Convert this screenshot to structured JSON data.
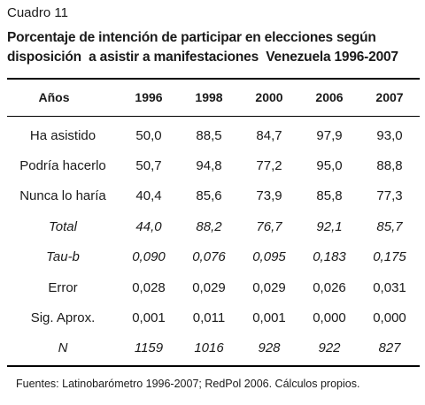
{
  "caption": "Cuadro 11",
  "title_line1": "Porcentaje de intención de participar en elecciones según",
  "title_line2": "disposición  a asistir a manifestaciones  Venezuela 1996-2007",
  "table": {
    "headers": [
      "Años",
      "1996",
      "1998",
      "2000",
      "2006",
      "2007"
    ],
    "rows": [
      {
        "label": "Ha asistido",
        "values": [
          "50,0",
          "88,5",
          "84,7",
          "97,9",
          "93,0"
        ],
        "italic": false
      },
      {
        "label": "Podría hacerlo",
        "values": [
          "50,7",
          "94,8",
          "77,2",
          "95,0",
          "88,8"
        ],
        "italic": false
      },
      {
        "label": "Nunca lo haría",
        "values": [
          "40,4",
          "85,6",
          "73,9",
          "85,8",
          "77,3"
        ],
        "italic": false
      },
      {
        "label": "Total",
        "values": [
          "44,0",
          "88,2",
          "76,7",
          "92,1",
          "85,7"
        ],
        "italic": true
      },
      {
        "label": "Tau-b",
        "values": [
          "0,090",
          "0,076",
          "0,095",
          "0,183",
          "0,175"
        ],
        "italic": true
      },
      {
        "label": "Error",
        "values": [
          "0,028",
          "0,029",
          "0,029",
          "0,026",
          "0,031"
        ],
        "italic": false
      },
      {
        "label": "Sig. Aprox.",
        "values": [
          "0,001",
          "0,011",
          "0,001",
          "0,000",
          "0,000"
        ],
        "italic": false
      },
      {
        "label": "N",
        "values": [
          "1159",
          "1016",
          "928",
          "922",
          "827"
        ],
        "italic": true
      }
    ]
  },
  "source_note": "Fuentes: Latinobarómetro 1996-2007; RedPol 2006. Cálculos propios."
}
